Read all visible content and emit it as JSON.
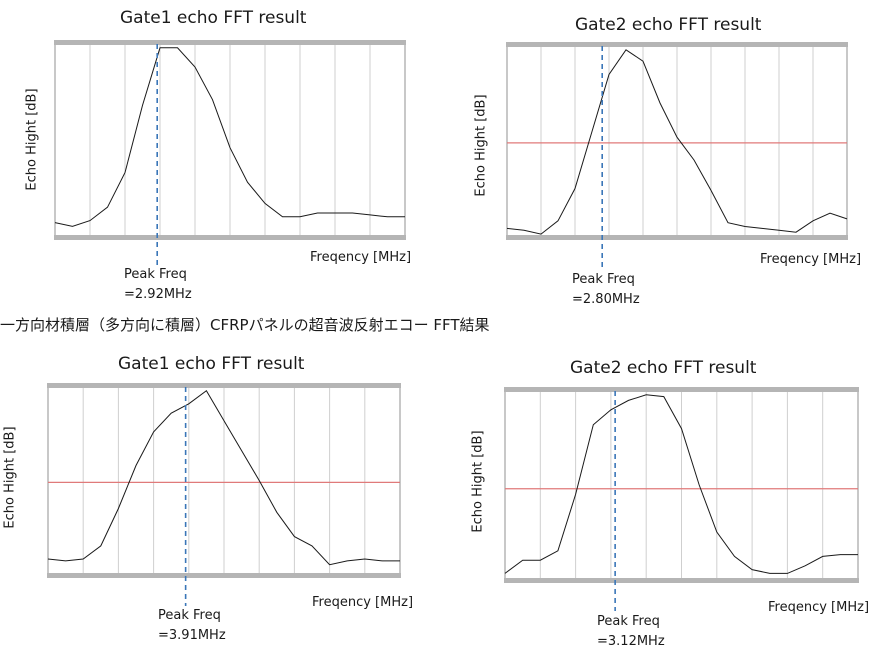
{
  "caption": "一方向材積層（多方向に積層）CFRPパネルの超音波反射エコー FFT結果",
  "chart_data": [
    {
      "type": "line",
      "title": "Gate1 echo FFT result",
      "xlabel": "Freqency [MHz]",
      "ylabel": "Echo Hight [dB]",
      "peak_label": "Peak Freq",
      "peak_value_label": "=2.92MHz",
      "peak_freq": 2.92,
      "threshold_line": null,
      "xlim": [
        0,
        10
      ],
      "ylim": [
        0,
        100
      ],
      "series": [
        {
          "x": [
            0,
            0.5,
            1,
            1.5,
            2,
            2.5,
            3,
            3.5,
            4,
            4.5,
            5,
            5.5,
            6,
            6.5,
            7,
            7.5,
            8,
            8.5,
            9,
            9.5,
            10
          ],
          "values": [
            7,
            5,
            8,
            15,
            33,
            68,
            98,
            98,
            88,
            71,
            46,
            28,
            17,
            10,
            10,
            12,
            12,
            12,
            11,
            10,
            10
          ]
        }
      ]
    },
    {
      "type": "line",
      "title": "Gate2 echo FFT result",
      "xlabel": "Freqency [MHz]",
      "ylabel": "Echo Hight [dB]",
      "peak_label": "Peak Freq",
      "peak_value_label": "=2.80MHz",
      "peak_freq": 2.8,
      "threshold_line": 49,
      "xlim": [
        0,
        10
      ],
      "ylim": [
        0,
        100
      ],
      "series": [
        {
          "x": [
            0,
            0.5,
            1,
            1.5,
            2,
            2.5,
            3,
            3.5,
            4,
            4.5,
            5,
            5.5,
            6,
            6.5,
            7,
            7.5,
            8,
            8.5,
            9,
            9.5,
            10
          ],
          "values": [
            4,
            3,
            1,
            8,
            25,
            55,
            85,
            98,
            92,
            70,
            52,
            40,
            24,
            7,
            5,
            4,
            3,
            2,
            8,
            12,
            9
          ]
        }
      ]
    },
    {
      "type": "line",
      "title": "Gate1 echo FFT result",
      "xlabel": "Freqency [MHz]",
      "ylabel": "Echo Hight [dB]",
      "peak_label": "Peak Freq",
      "peak_value_label": "=3.91MHz",
      "peak_freq": 3.91,
      "threshold_line": 49,
      "xlim": [
        0,
        10
      ],
      "ylim": [
        0,
        100
      ],
      "series": [
        {
          "x": [
            0,
            0.5,
            1,
            1.5,
            2,
            2.5,
            3,
            3.5,
            4,
            4.5,
            5,
            5.5,
            6,
            6.5,
            7,
            7.5,
            8,
            8.5,
            9,
            9.5,
            10
          ],
          "values": [
            8,
            7,
            8,
            15,
            35,
            58,
            76,
            86,
            91,
            98,
            82,
            66,
            50,
            33,
            20,
            15,
            5,
            7,
            8,
            7,
            7
          ]
        }
      ]
    },
    {
      "type": "line",
      "title": "Gate2 echo FFT result",
      "xlabel": "Freqency [MHz]",
      "ylabel": "Echo Hight [dB]",
      "peak_label": "Peak Freq",
      "peak_value_label": "=3.12MHz",
      "peak_freq": 3.12,
      "threshold_line": 48,
      "xlim": [
        0,
        10
      ],
      "ylim": [
        0,
        100
      ],
      "series": [
        {
          "x": [
            0,
            0.5,
            1,
            1.5,
            2,
            2.5,
            3,
            3.5,
            4,
            4.5,
            5,
            5.5,
            6,
            6.5,
            7,
            7.5,
            8,
            8.5,
            9,
            9.5,
            10
          ],
          "values": [
            3,
            10,
            10,
            15,
            45,
            82,
            90,
            95,
            98,
            97,
            80,
            50,
            25,
            12,
            5,
            3,
            3,
            7,
            12,
            13,
            13
          ]
        }
      ]
    }
  ]
}
